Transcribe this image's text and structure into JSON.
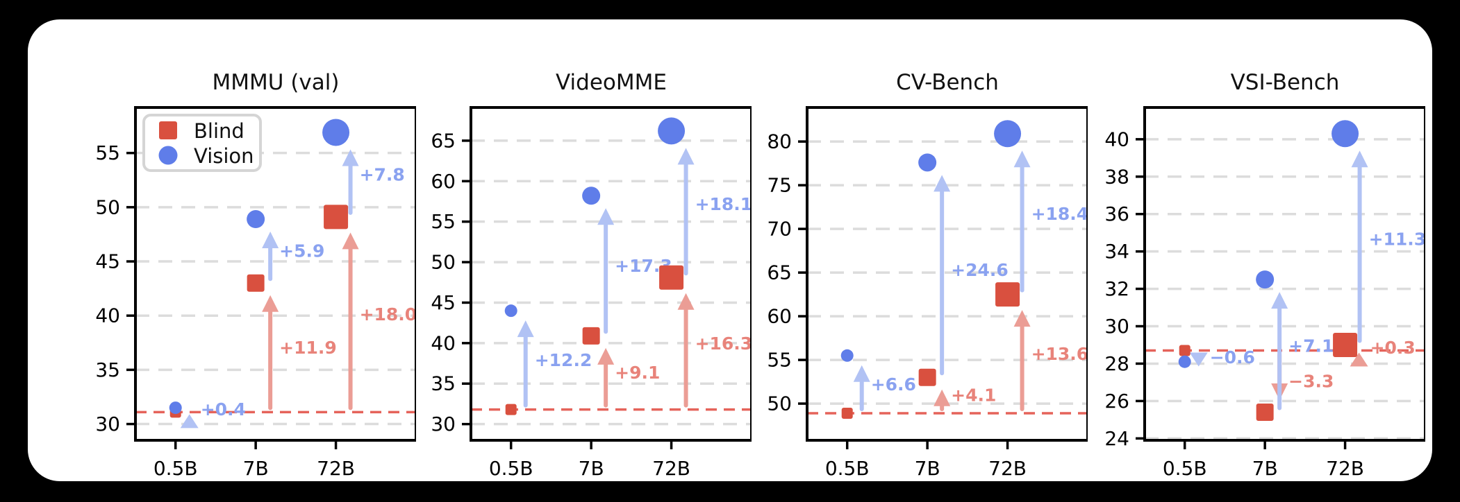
{
  "figure": {
    "background": "#000000",
    "card_background": "#ffffff",
    "categories": [
      "0.5B",
      "7B",
      "72B"
    ],
    "size_encoding": "marker size increases with model scale"
  },
  "colors": {
    "blind": "#d9503f",
    "vision": "#5f7de9",
    "blind_arrow": "#eb9d95",
    "vision_arrow": "#b1c2f4",
    "blind_delta_text": "#e8837a",
    "vision_delta_text": "#8aa2f0",
    "baseline": "#e5635a",
    "grid": "#dcdcdc",
    "spine": "#000000"
  },
  "legend": {
    "items": [
      {
        "label": "Blind",
        "marker": "square",
        "color": "#d9503f"
      },
      {
        "label": "Vision",
        "marker": "circle",
        "color": "#5f7de9"
      }
    ]
  },
  "chart_data": [
    {
      "type": "scatter",
      "title": "MMMU (val)",
      "categories": [
        "0.5B",
        "7B",
        "72B"
      ],
      "series": [
        {
          "name": "Blind",
          "values": [
            31.1,
            43.0,
            49.1
          ]
        },
        {
          "name": "Vision",
          "values": [
            31.5,
            48.9,
            56.9
          ]
        }
      ],
      "baseline": 31.1,
      "blind_deltas": [
        null,
        11.9,
        18.0
      ],
      "vision_deltas": [
        0.4,
        5.9,
        7.8
      ],
      "blind_delta_labels": [
        "",
        "+11.9",
        "+18.0"
      ],
      "vision_delta_labels": [
        "+0.4",
        "+5.9",
        "+7.8"
      ],
      "yticks": [
        30,
        35,
        40,
        45,
        50,
        55
      ],
      "ylim": [
        28.5,
        59.2
      ],
      "grid": "dashed-horizontal",
      "has_legend": true
    },
    {
      "type": "scatter",
      "title": "VideoMME",
      "categories": [
        "0.5B",
        "7B",
        "72B"
      ],
      "series": [
        {
          "name": "Blind",
          "values": [
            31.8,
            40.9,
            48.1
          ]
        },
        {
          "name": "Vision",
          "values": [
            44.0,
            58.2,
            66.2
          ]
        }
      ],
      "baseline": 31.8,
      "blind_deltas": [
        null,
        9.1,
        16.3
      ],
      "vision_deltas": [
        12.2,
        17.3,
        18.1
      ],
      "blind_delta_labels": [
        "",
        "+9.1",
        "+16.3"
      ],
      "vision_delta_labels": [
        "+12.2",
        "+17.3",
        "+18.1"
      ],
      "yticks": [
        30,
        35,
        40,
        45,
        50,
        55,
        60,
        65
      ],
      "ylim": [
        28.0,
        69.1
      ],
      "grid": "dashed-horizontal",
      "has_legend": false
    },
    {
      "type": "scatter",
      "title": "CV-Bench",
      "categories": [
        "0.5B",
        "7B",
        "72B"
      ],
      "series": [
        {
          "name": "Blind",
          "values": [
            48.9,
            53.0,
            62.5
          ]
        },
        {
          "name": "Vision",
          "values": [
            55.5,
            77.6,
            80.9
          ]
        }
      ],
      "baseline": 48.9,
      "blind_deltas": [
        null,
        4.1,
        13.6
      ],
      "vision_deltas": [
        6.6,
        24.6,
        18.4
      ],
      "blind_delta_labels": [
        "",
        "+4.1",
        "+13.6"
      ],
      "vision_delta_labels": [
        "+6.6",
        "+24.6",
        "+18.4"
      ],
      "yticks": [
        50,
        55,
        60,
        65,
        70,
        75,
        80
      ],
      "ylim": [
        45.8,
        83.9
      ],
      "grid": "dashed-horizontal",
      "has_legend": false
    },
    {
      "type": "scatter",
      "title": "VSI-Bench",
      "categories": [
        "0.5B",
        "7B",
        "72B"
      ],
      "series": [
        {
          "name": "Blind",
          "values": [
            28.7,
            25.4,
            29.0
          ]
        },
        {
          "name": "Vision",
          "values": [
            28.1,
            32.5,
            40.3
          ]
        }
      ],
      "baseline": 28.7,
      "blind_deltas": [
        null,
        -3.3,
        0.3
      ],
      "vision_deltas": [
        -0.6,
        7.1,
        11.3
      ],
      "blind_delta_labels": [
        "",
        "−3.3",
        "+0.3"
      ],
      "vision_delta_labels": [
        "−0.6",
        "+7.1",
        "+11.3"
      ],
      "yticks": [
        24,
        26,
        28,
        30,
        32,
        34,
        36,
        38,
        40
      ],
      "ylim": [
        23.9,
        41.7
      ],
      "grid": "dashed-horizontal",
      "has_legend": false
    }
  ]
}
